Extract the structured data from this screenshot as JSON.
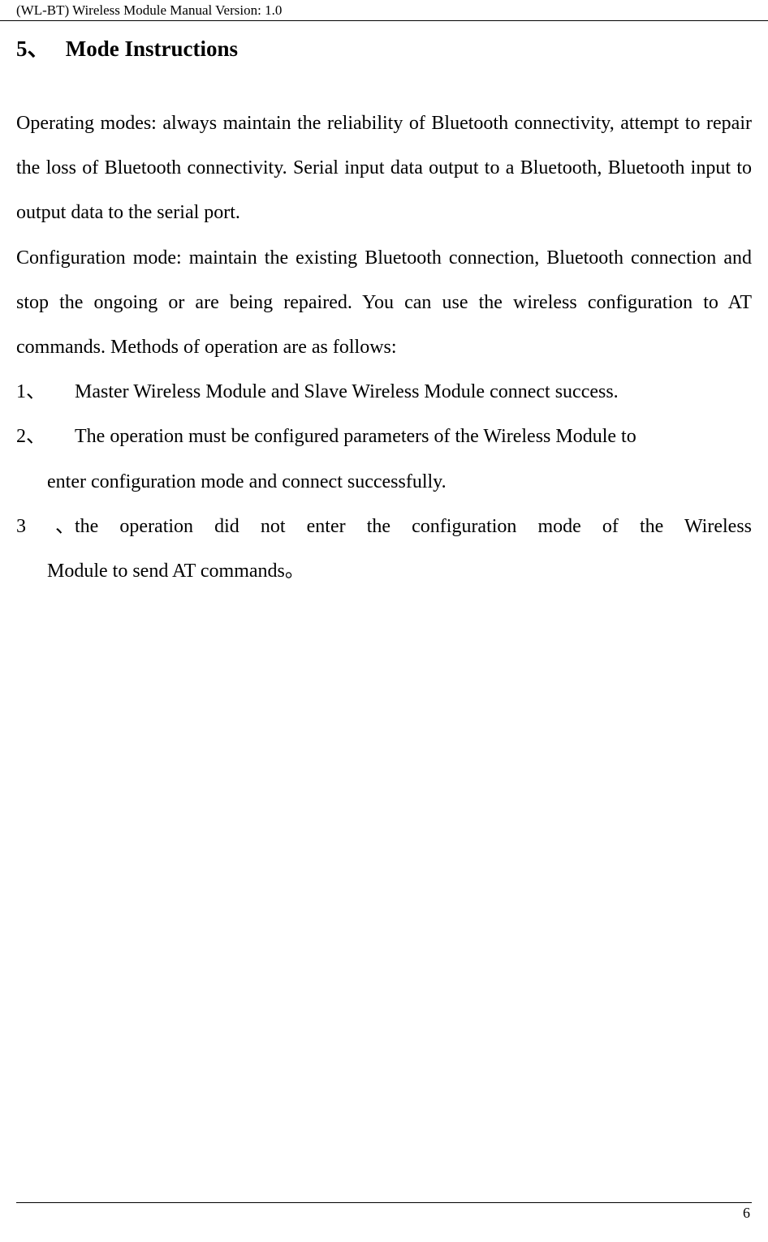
{
  "header": {
    "prefix": "(WL-BT) ",
    "middle": "Wireless Module ",
    "suffix": "Manual Version: 1.0"
  },
  "section": {
    "number": "5、",
    "title": "Mode Instructions"
  },
  "paragraphs": {
    "p1": "Operating modes: always maintain the reliability of Bluetooth connectivity, attempt to repair the loss of Bluetooth connectivity. Serial input data output to a Bluetooth, Bluetooth input to output data to the serial port.",
    "p2": "Configuration mode: maintain the existing Bluetooth connection, Bluetooth connection and stop the ongoing or are being repaired. You can use the wireless configuration to AT commands. Methods of operation are as follows:"
  },
  "list": {
    "item1": {
      "number": "1、",
      "text": "Master Wireless Module and Slave Wireless Module connect success."
    },
    "item2": {
      "number": "2、",
      "line1": "The operation must be configured parameters of the Wireless Module to",
      "line2": "enter configuration mode and connect successfully."
    },
    "item3": {
      "number": "3、",
      "line1": "the operation did not enter the configuration mode of the Wireless",
      "line2": "Module to send AT commands。"
    }
  },
  "footer": {
    "pageNumber": "6"
  },
  "styles": {
    "backgroundColor": "#ffffff",
    "textColor": "#000000",
    "bodyFontSize": 24,
    "titleFontSize": 27,
    "headerFontSize": 17,
    "lineHeight": 2.3
  }
}
